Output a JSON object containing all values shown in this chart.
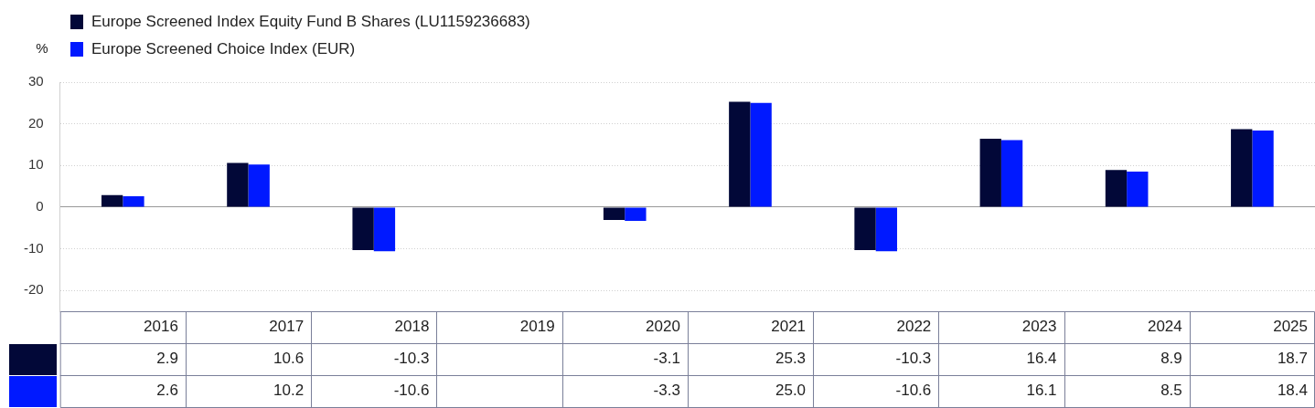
{
  "chart_data": {
    "type": "bar",
    "ylabel": "%",
    "categories": [
      "2016",
      "2017",
      "2018",
      "2019",
      "2020",
      "2021",
      "2022",
      "2023",
      "2024",
      "2025"
    ],
    "series": [
      {
        "name": "Europe Screened Index Equity Fund B Shares (LU1159236683)",
        "color": "#020838",
        "values": [
          2.9,
          10.6,
          -10.3,
          null,
          -3.1,
          25.3,
          -10.3,
          16.4,
          8.9,
          18.7
        ],
        "value_labels": [
          "2.9",
          "10.6",
          "-10.3",
          null,
          "-3.1",
          "25.3",
          "-10.3",
          "16.4",
          "8.9",
          "18.7"
        ]
      },
      {
        "name": "Europe Screened Choice Index (EUR)",
        "color": "#0019ff",
        "values": [
          2.6,
          10.2,
          -10.6,
          null,
          -3.3,
          25.0,
          -10.6,
          16.1,
          8.5,
          18.4
        ],
        "value_labels": [
          "2.6",
          "10.2",
          "-10.6",
          null,
          "-3.3",
          "25.0",
          "-10.6",
          "16.1",
          "8.5",
          "18.4"
        ]
      }
    ],
    "ylim": [
      -25,
      30
    ],
    "yticks": [
      -20,
      -10,
      0,
      10,
      20,
      30
    ],
    "grid": "y",
    "legend": "top left"
  }
}
